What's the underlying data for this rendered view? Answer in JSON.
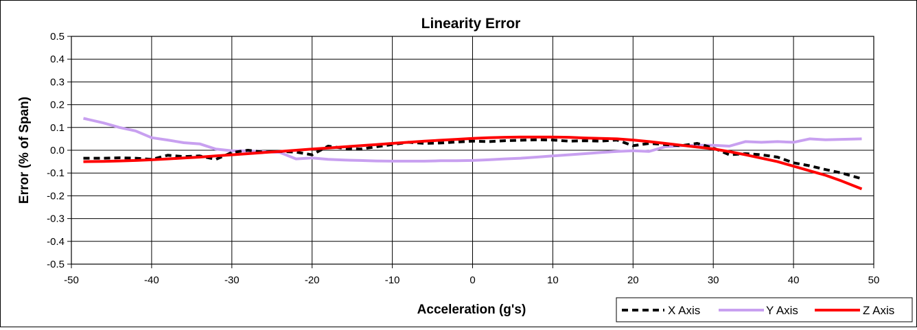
{
  "chart_data": {
    "type": "line",
    "title": "Linearity Error",
    "xlabel": "Acceleration (g's)",
    "ylabel": "Error (% of Span)",
    "xlim": [
      -50,
      50
    ],
    "ylim": [
      -0.5,
      0.5
    ],
    "x_ticks": [
      -50,
      -40,
      -30,
      -20,
      -10,
      0,
      10,
      20,
      30,
      40,
      50
    ],
    "x_tick_labels": [
      "-50",
      "-40",
      "-30",
      "-20",
      "-10",
      "0",
      "10",
      "20",
      "30",
      "40",
      "50"
    ],
    "y_ticks": [
      0.5,
      0.4,
      0.3,
      0.2,
      0.1,
      0.0,
      -0.1,
      -0.2,
      -0.3,
      -0.4,
      -0.5
    ],
    "y_tick_labels": [
      "0.5",
      "0.4",
      "0.3",
      "0.2",
      "0.1",
      "0.0",
      "-0.1",
      "-0.2",
      "-0.3",
      "-0.4",
      "-0.5"
    ],
    "grid": true,
    "legend_position": "bottom-right",
    "series": [
      {
        "name": "X Axis",
        "color": "#000000",
        "style": "dashed",
        "x": [
          -48.5,
          -46,
          -44,
          -42,
          -40,
          -38,
          -36,
          -34,
          -32,
          -30,
          -28,
          -26,
          -24,
          -22,
          -20,
          -18,
          -16,
          -14,
          -12,
          -10,
          -8,
          -6,
          -4,
          -2,
          0,
          2,
          4,
          6,
          8,
          10,
          12,
          14,
          16,
          18,
          20,
          22,
          24,
          26,
          28,
          30,
          32,
          34,
          36,
          38,
          40,
          42,
          44,
          46,
          48.5
        ],
        "y": [
          -0.035,
          -0.035,
          -0.033,
          -0.035,
          -0.04,
          -0.022,
          -0.028,
          -0.025,
          -0.04,
          -0.01,
          0.0,
          -0.008,
          -0.005,
          -0.008,
          -0.02,
          0.018,
          0.008,
          0.005,
          0.015,
          0.025,
          0.035,
          0.03,
          0.032,
          0.036,
          0.04,
          0.038,
          0.042,
          0.044,
          0.046,
          0.045,
          0.04,
          0.042,
          0.04,
          0.045,
          0.02,
          0.03,
          0.025,
          0.02,
          0.03,
          0.01,
          -0.02,
          -0.015,
          -0.02,
          -0.03,
          -0.055,
          -0.068,
          -0.085,
          -0.1,
          -0.125
        ]
      },
      {
        "name": "Y Axis",
        "color": "#c8a0f0",
        "style": "solid",
        "x": [
          -48.5,
          -46,
          -44,
          -42,
          -40,
          -38,
          -36,
          -34,
          -32,
          -30,
          -28,
          -26,
          -24,
          -22,
          -20,
          -18,
          -16,
          -14,
          -12,
          -10,
          -8,
          -6,
          -4,
          -2,
          0,
          2,
          4,
          6,
          8,
          10,
          12,
          14,
          16,
          18,
          20,
          22,
          24,
          26,
          28,
          30,
          32,
          34,
          36,
          38,
          40,
          42,
          44,
          46,
          48.5
        ],
        "y": [
          0.14,
          0.12,
          0.1,
          0.085,
          0.055,
          0.045,
          0.033,
          0.028,
          0.005,
          -0.002,
          -0.003,
          -0.006,
          -0.01,
          -0.038,
          -0.034,
          -0.04,
          -0.043,
          -0.045,
          -0.047,
          -0.048,
          -0.048,
          -0.048,
          -0.046,
          -0.046,
          -0.045,
          -0.042,
          -0.038,
          -0.035,
          -0.03,
          -0.025,
          -0.02,
          -0.015,
          -0.01,
          -0.005,
          -0.002,
          -0.005,
          0.015,
          0.02,
          0.022,
          0.022,
          0.018,
          0.038,
          0.035,
          0.038,
          0.035,
          0.05,
          0.046,
          0.048,
          0.05
        ]
      },
      {
        "name": "Z Axis",
        "color": "#ff0000",
        "style": "solid",
        "x": [
          -48.5,
          -46,
          -44,
          -42,
          -40,
          -38,
          -36,
          -34,
          -32,
          -30,
          -28,
          -26,
          -24,
          -22,
          -20,
          -18,
          -16,
          -14,
          -12,
          -10,
          -8,
          -6,
          -4,
          -2,
          0,
          2,
          4,
          6,
          8,
          10,
          12,
          14,
          16,
          18,
          20,
          22,
          24,
          26,
          28,
          30,
          32,
          34,
          36,
          38,
          40,
          42,
          44,
          46,
          48.5
        ],
        "y": [
          -0.05,
          -0.049,
          -0.047,
          -0.045,
          -0.042,
          -0.038,
          -0.034,
          -0.03,
          -0.025,
          -0.02,
          -0.015,
          -0.01,
          -0.005,
          0.0,
          0.005,
          0.01,
          0.015,
          0.02,
          0.025,
          0.03,
          0.035,
          0.04,
          0.044,
          0.048,
          0.052,
          0.055,
          0.057,
          0.058,
          0.058,
          0.058,
          0.057,
          0.054,
          0.052,
          0.05,
          0.045,
          0.038,
          0.03,
          0.022,
          0.014,
          0.006,
          -0.006,
          -0.02,
          -0.035,
          -0.05,
          -0.07,
          -0.09,
          -0.11,
          -0.135,
          -0.17
        ]
      }
    ]
  }
}
